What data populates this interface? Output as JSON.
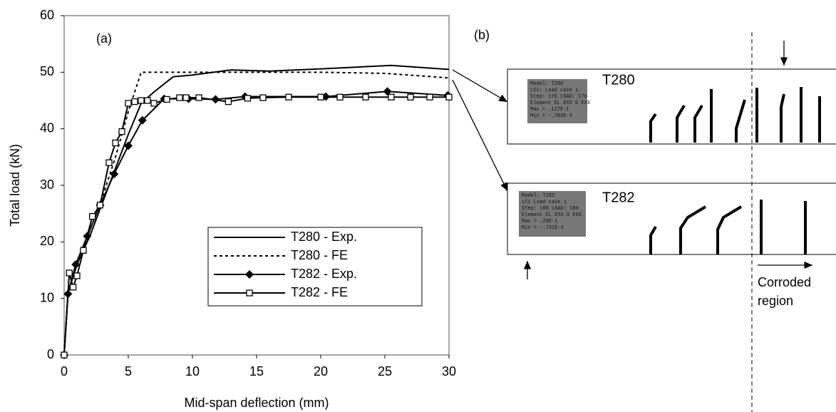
{
  "chart_data": {
    "type": "line",
    "xlabel": "Mid-span deflection (mm)",
    "ylabel": "Total load (kN)",
    "xlim": [
      0,
      30
    ],
    "ylim": [
      0,
      60
    ],
    "xticks": [
      0,
      5,
      10,
      15,
      20,
      25,
      30
    ],
    "yticks": [
      0,
      10,
      20,
      30,
      40,
      50,
      60
    ],
    "grid": false,
    "legend": "lower-right",
    "series": [
      {
        "name": "T280 -  Exp.",
        "color": "#000000",
        "dash": "solid",
        "marker": "none",
        "x": [
          0,
          0.3,
          1,
          2,
          3,
          4,
          5,
          6,
          7,
          8.5,
          10,
          13,
          16,
          20,
          25.5,
          30
        ],
        "values": [
          0,
          11,
          16,
          21,
          27,
          33,
          39,
          44.5,
          46.5,
          49.2,
          49.5,
          50.4,
          50.2,
          50.6,
          51.2,
          50.5
        ]
      },
      {
        "name": "T280 - FE",
        "color": "#000000",
        "dash": "dashed",
        "marker": "none",
        "x": [
          0,
          0.3,
          1,
          2,
          3,
          4,
          5,
          6,
          10,
          15,
          20,
          25,
          30
        ],
        "values": [
          0,
          11,
          16,
          22,
          28,
          35,
          43,
          50,
          50,
          50,
          50,
          49.8,
          49
        ]
      },
      {
        "name": "T282 - Exp.",
        "color": "#000000",
        "dash": "solid",
        "marker": "diamond",
        "x": [
          0,
          0.3,
          0.9,
          1.8,
          2.8,
          3.9,
          5,
          6.1,
          7.8,
          9.7,
          11.8,
          14.1,
          20.4,
          25.2,
          29.9
        ],
        "values": [
          0,
          10.8,
          16,
          21,
          26.5,
          32,
          37,
          41.5,
          45.3,
          45.3,
          45.2,
          45.7,
          45.7,
          46.6,
          45.9
        ]
      },
      {
        "name": "T282 - FE",
        "color": "#000000",
        "dash": "solid",
        "marker": "square",
        "x": [
          0,
          0.4,
          0.7,
          1,
          1.5,
          2.2,
          2.8,
          3.5,
          4,
          4.5,
          5,
          5.5,
          6,
          6.5,
          7,
          8,
          9,
          9.5,
          10.5,
          12.8,
          14.3,
          15.5,
          17.5,
          20,
          21.5,
          23.5,
          25.5,
          27,
          28.5,
          30
        ],
        "values": [
          0,
          14.5,
          12,
          14,
          18.5,
          24.5,
          26.5,
          34,
          37.5,
          39.5,
          44.5,
          44.8,
          45,
          45,
          44.5,
          45.2,
          45.5,
          45.5,
          45.5,
          44.8,
          45.4,
          45.5,
          45.6,
          45.6,
          45.6,
          45.6,
          45.6,
          45.6,
          45.6,
          45.6
        ]
      }
    ]
  },
  "panel_labels": [
    "(a)",
    "(b)"
  ],
  "diagram": {
    "panels": [
      {
        "title": "T280",
        "info": [
          "Model: T280",
          "LC1: Load case 1",
          "Step: 176  LOAD: 176",
          "Element EL EXX G EXX",
          "Max = .127E-1",
          "Min = -.703E-3"
        ]
      },
      {
        "title": "T282",
        "info": [
          "Model: T282",
          "LC1  Load case 1",
          "Step: 180  LOAD: 180",
          "Element EL EXX G EXX",
          "Max = .26E-1",
          "Min = -.731E-3"
        ]
      }
    ],
    "region_label": [
      "Corroded",
      "region"
    ]
  }
}
